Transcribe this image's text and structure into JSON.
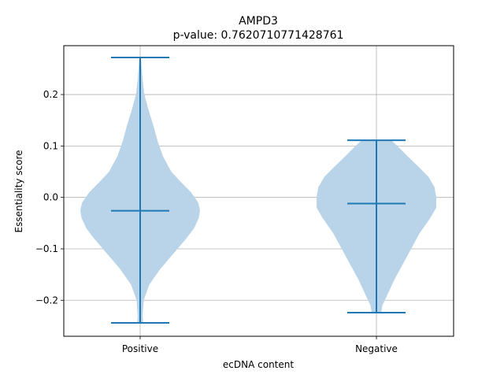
{
  "chart_data": {
    "type": "violin",
    "title": "AMPD3",
    "subtitle": "p-value: 0.7620710771428761",
    "xlabel": "ecDNA content",
    "ylabel": "Essentiality score",
    "ylim": [
      -0.27,
      0.295
    ],
    "yticks": [
      -0.2,
      -0.1,
      0.0,
      0.1,
      0.2
    ],
    "ytick_labels": [
      "−0.2",
      "−0.1",
      "0.0",
      "0.1",
      "0.2"
    ],
    "grid": true,
    "colors": {
      "body": "#b9d4e8",
      "lines": "#1f77b4",
      "grid": "#b0b0b0"
    },
    "categories": [
      "Positive",
      "Negative"
    ],
    "violins": [
      {
        "category": "Positive",
        "min": -0.244,
        "max": 0.272,
        "median": -0.026,
        "density": [
          [
            -0.244,
            0.05
          ],
          [
            -0.23,
            0.04
          ],
          [
            -0.2,
            0.06
          ],
          [
            -0.17,
            0.15
          ],
          [
            -0.14,
            0.33
          ],
          [
            -0.11,
            0.55
          ],
          [
            -0.08,
            0.77
          ],
          [
            -0.06,
            0.9
          ],
          [
            -0.04,
            0.98
          ],
          [
            -0.025,
            1.0
          ],
          [
            -0.01,
            0.97
          ],
          [
            0.01,
            0.85
          ],
          [
            0.03,
            0.68
          ],
          [
            0.05,
            0.52
          ],
          [
            0.08,
            0.38
          ],
          [
            0.11,
            0.29
          ],
          [
            0.14,
            0.22
          ],
          [
            0.17,
            0.14
          ],
          [
            0.2,
            0.07
          ],
          [
            0.23,
            0.04
          ],
          [
            0.255,
            0.025
          ],
          [
            0.272,
            0.01
          ]
        ]
      },
      {
        "category": "Negative",
        "min": -0.224,
        "max": 0.111,
        "median": -0.012,
        "density": [
          [
            -0.224,
            0.08
          ],
          [
            -0.21,
            0.1
          ],
          [
            -0.19,
            0.18
          ],
          [
            -0.16,
            0.3
          ],
          [
            -0.13,
            0.44
          ],
          [
            -0.1,
            0.58
          ],
          [
            -0.07,
            0.72
          ],
          [
            -0.04,
            0.9
          ],
          [
            -0.02,
            1.0
          ],
          [
            0.0,
            1.0
          ],
          [
            0.02,
            0.97
          ],
          [
            0.04,
            0.87
          ],
          [
            0.06,
            0.7
          ],
          [
            0.08,
            0.52
          ],
          [
            0.1,
            0.35
          ],
          [
            0.111,
            0.25
          ]
        ]
      }
    ]
  }
}
